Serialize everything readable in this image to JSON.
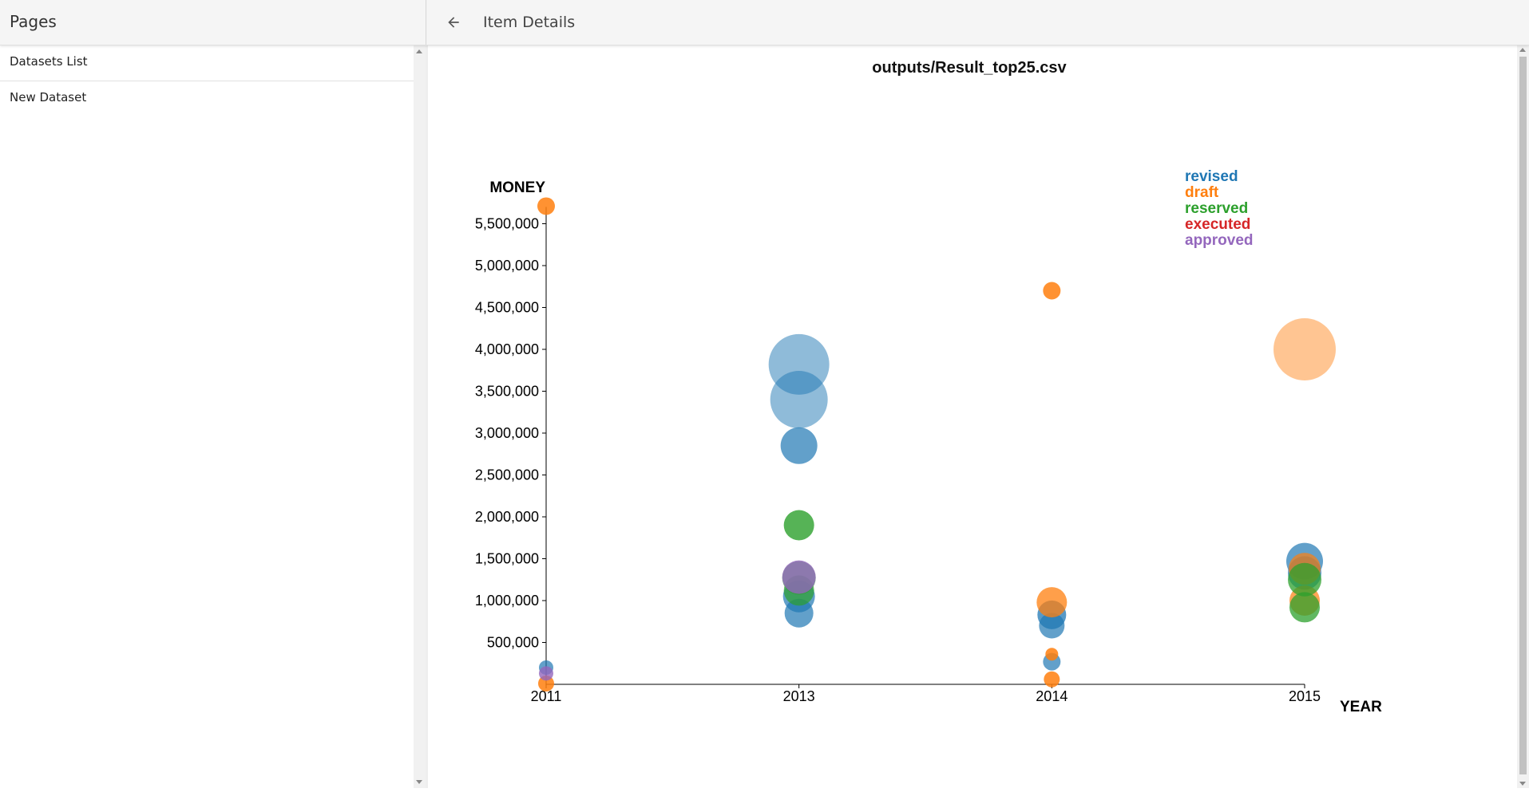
{
  "header": {
    "pages_title": "Pages",
    "item_title": "Item Details",
    "back_icon": "arrow-left-icon"
  },
  "sidebar": {
    "items": [
      {
        "label": "Datasets List"
      },
      {
        "label": "New Dataset"
      }
    ]
  },
  "colors": {
    "revised": "#1f77b4",
    "draft": "#ff7f0e",
    "reserved": "#2ca02c",
    "executed": "#d62728",
    "approved": "#9467bd"
  },
  "chart_data": {
    "type": "scatter",
    "title": "outputs/Result_top25.csv",
    "xlabel": "YEAR",
    "ylabel": "MONEY",
    "x_categories": [
      "2011",
      "2013",
      "2014",
      "2015"
    ],
    "y_ticks": [
      500000,
      1000000,
      1500000,
      2000000,
      2500000,
      3000000,
      3500000,
      4000000,
      4500000,
      5000000,
      5500000
    ],
    "ylim": [
      0,
      5700000
    ],
    "legend": {
      "position": "top-right",
      "entries": [
        "revised",
        "draft",
        "reserved",
        "executed",
        "approved"
      ]
    },
    "grid": false,
    "series": [
      {
        "name": "revised",
        "color": "#1f77b4",
        "points": [
          {
            "x": "2013",
            "y": 3820000,
            "size": 38,
            "opacity": 0.5
          },
          {
            "x": "2013",
            "y": 3400000,
            "size": 36,
            "opacity": 0.5
          },
          {
            "x": "2013",
            "y": 2850000,
            "size": 23,
            "opacity": 0.7
          },
          {
            "x": "2013",
            "y": 1050000,
            "size": 20,
            "opacity": 0.7
          },
          {
            "x": "2013",
            "y": 850000,
            "size": 18,
            "opacity": 0.7
          },
          {
            "x": "2014",
            "y": 830000,
            "size": 18,
            "opacity": 0.75
          },
          {
            "x": "2014",
            "y": 700000,
            "size": 16,
            "opacity": 0.7
          },
          {
            "x": "2014",
            "y": 270000,
            "size": 11,
            "opacity": 0.7
          },
          {
            "x": "2015",
            "y": 1470000,
            "size": 23,
            "opacity": 0.7
          },
          {
            "x": "2015",
            "y": 1330000,
            "size": 21,
            "opacity": 0.7
          },
          {
            "x": "2011",
            "y": 200000,
            "size": 9,
            "opacity": 0.7
          }
        ]
      },
      {
        "name": "draft",
        "color": "#ff7f0e",
        "points": [
          {
            "x": "2011",
            "y": 5710000,
            "size": 11,
            "opacity": 0.85
          },
          {
            "x": "2011",
            "y": 10000,
            "size": 10,
            "opacity": 0.85
          },
          {
            "x": "2014",
            "y": 4700000,
            "size": 11,
            "opacity": 0.85
          },
          {
            "x": "2014",
            "y": 980000,
            "size": 19,
            "opacity": 0.75
          },
          {
            "x": "2014",
            "y": 360000,
            "size": 8,
            "opacity": 0.85
          },
          {
            "x": "2014",
            "y": 60000,
            "size": 10,
            "opacity": 0.85
          },
          {
            "x": "2015",
            "y": 4000000,
            "size": 39,
            "opacity": 0.45
          },
          {
            "x": "2015",
            "y": 1380000,
            "size": 20,
            "opacity": 0.7
          },
          {
            "x": "2015",
            "y": 1000000,
            "size": 19,
            "opacity": 0.7
          }
        ]
      },
      {
        "name": "reserved",
        "color": "#2ca02c",
        "points": [
          {
            "x": "2013",
            "y": 1900000,
            "size": 19,
            "opacity": 0.8
          },
          {
            "x": "2013",
            "y": 1270000,
            "size": 21,
            "opacity": 0.65
          },
          {
            "x": "2013",
            "y": 1120000,
            "size": 19,
            "opacity": 0.7
          },
          {
            "x": "2015",
            "y": 1250000,
            "size": 21,
            "opacity": 0.75
          },
          {
            "x": "2015",
            "y": 920000,
            "size": 19,
            "opacity": 0.75
          }
        ]
      },
      {
        "name": "executed",
        "color": "#d62728",
        "points": []
      },
      {
        "name": "approved",
        "color": "#9467bd",
        "points": [
          {
            "x": "2013",
            "y": 1280000,
            "size": 21,
            "opacity": 0.8
          },
          {
            "x": "2011",
            "y": 130000,
            "size": 9,
            "opacity": 0.8
          }
        ]
      }
    ]
  }
}
